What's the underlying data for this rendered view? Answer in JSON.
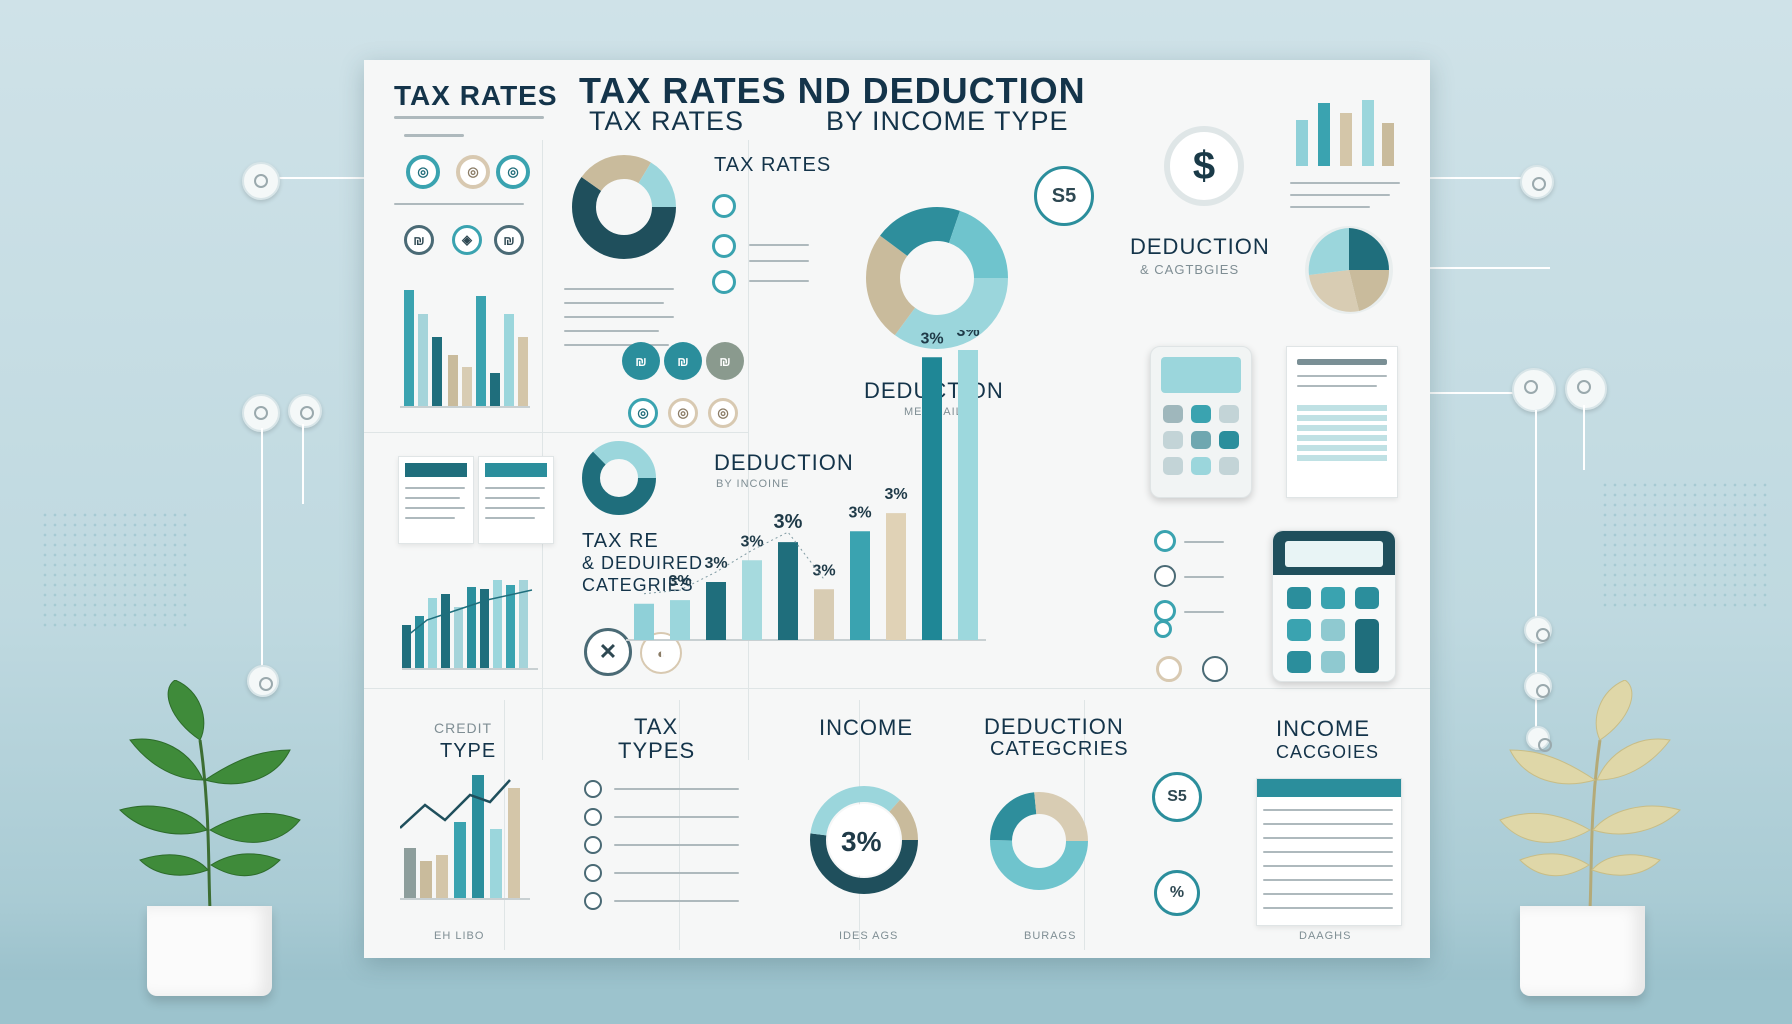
{
  "poster": {
    "top_left_title": "TAX RATES",
    "main_title_line1": "TAX RATES ND DEDUCTION",
    "main_title_line2_a": "TAX RATES",
    "main_title_line2_b": "BY INCOME TYPE",
    "small_tax_rates": "TAX RATES",
    "deduction_categories_1": "DEDUCTION",
    "deduction_categories_1_sub": "& CAGTBGIES",
    "deduction_center": "DEDUCTION",
    "deduction_center_sub": "MEE SAIL",
    "deduction_by_income": "DEDUCTION",
    "deduction_by_income_sub": "BY INCOINE",
    "tax_re_line1": "TAX RE",
    "tax_re_line2": "& DEDUIRED",
    "tax_re_line3": "CATEGRIES",
    "credit_type_top": "CREDIT",
    "credit_type": "TYPE",
    "tax_types_line1": "TAX",
    "tax_types_line2": "TYPES",
    "income": "INCOME",
    "deduction_categories_2_line1": "DEDUCTION",
    "deduction_categories_2_line2": "CATEGCRIES",
    "income_categories_line1": "INCOME",
    "income_categories_line2": "CACGOIES",
    "footer_1": "EH LIBO",
    "footer_2": "IDES AGS",
    "footer_3": "BURAGS",
    "footer_4": "DAAGHS"
  },
  "badges": {
    "dollar": "$",
    "s5": "S5",
    "pct_main": "3%",
    "pct_small": "%",
    "s5_small": "S5"
  },
  "chart_data": [
    {
      "type": "bar",
      "categories": [
        "",
        "",
        "",
        "",
        "",
        "",
        "",
        "",
        "",
        ""
      ],
      "values": [
        10,
        11,
        16,
        22,
        27,
        14,
        30,
        35,
        78,
        80
      ],
      "data_labels": [
        "",
        "3%",
        "3%",
        "3%",
        "3%",
        "3%",
        "3%",
        "3%",
        "3%",
        "3%"
      ],
      "colors": [
        "#8fd0d8",
        "#9bd6dc",
        "#1f6e7c",
        "#a6dade",
        "#1f6e7c",
        "#d8ccb3",
        "#3aa3b0",
        "#e0d2b6",
        "#1f8796",
        "#9dd8dd"
      ],
      "grid": false
    },
    {
      "type": "pie",
      "slices": [
        {
          "label": "",
          "value": 35,
          "color": "#9bd6dc"
        },
        {
          "label": "",
          "value": 25,
          "color": "#c9bb9c"
        },
        {
          "label": "",
          "value": 20,
          "color": "#2e8e9c"
        },
        {
          "label": "",
          "value": 20,
          "color": "#6fc4cd"
        }
      ]
    }
  ],
  "colors": {
    "accent": "#2b8e9c",
    "accent_dark": "#1f6e7c",
    "sand": "#d4c6a9",
    "light_teal": "#9bd6dc",
    "ink": "#14344a"
  }
}
